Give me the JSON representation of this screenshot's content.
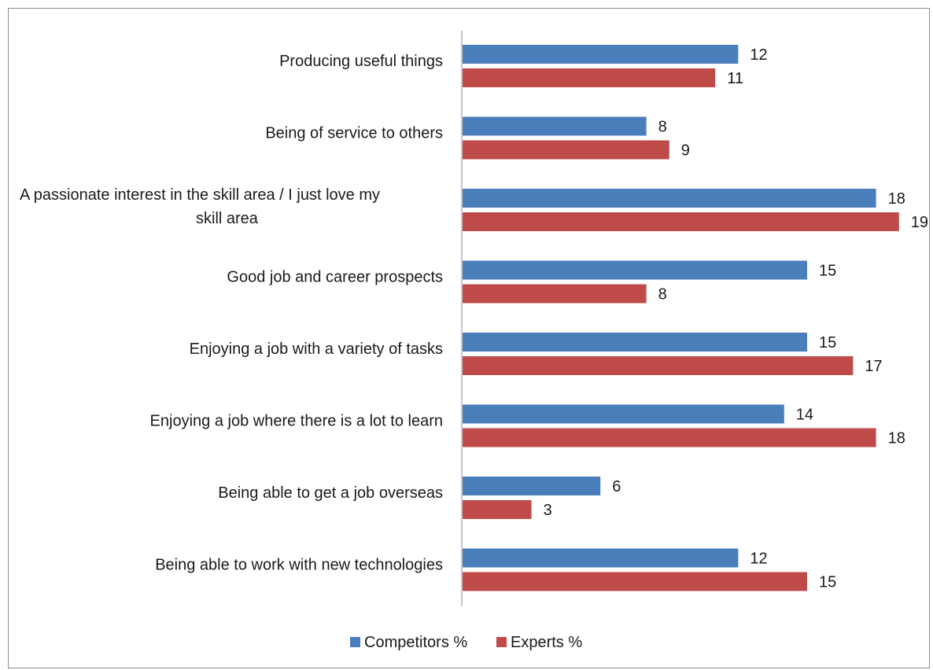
{
  "chart_data": {
    "type": "bar",
    "orientation": "horizontal",
    "categories": [
      [
        "Producing useful things"
      ],
      [
        "Being of service to others"
      ],
      [
        "A passionate interest in the skill area / I just love my",
        "skill area"
      ],
      [
        "Good job and career prospects"
      ],
      [
        "Enjoying a job with a variety of tasks"
      ],
      [
        "Enjoying a job where there is a lot to learn"
      ],
      [
        "Being able to get a job overseas"
      ],
      [
        "Being able to work with new technologies"
      ]
    ],
    "series": [
      {
        "name": "Competitors %",
        "color": "#4a7ebb",
        "values": [
          12,
          8,
          18,
          15,
          15,
          14,
          6,
          12
        ]
      },
      {
        "name": "Experts %",
        "color": "#be4b48",
        "values": [
          11,
          9,
          19,
          8,
          17,
          18,
          3,
          15
        ]
      }
    ],
    "xlim": [
      0,
      20
    ],
    "grid": false,
    "legend_position": "bottom",
    "data_labels": true
  }
}
